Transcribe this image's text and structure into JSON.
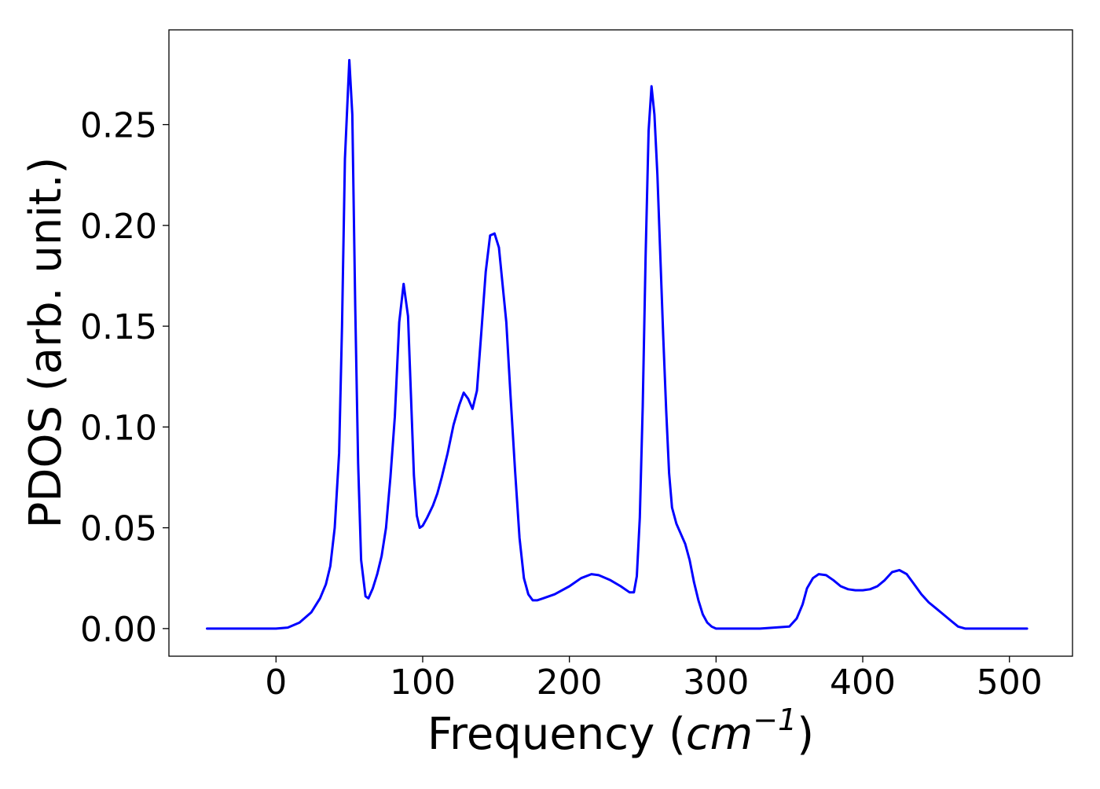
{
  "chart_data": {
    "type": "line",
    "title": "",
    "xlabel_prefix": "Frequency (",
    "xlabel_unit_base": "cm",
    "xlabel_unit_exp": "−1",
    "xlabel_suffix": ")",
    "ylabel": "PDOS (arb. unit.)",
    "xlim": [
      -73,
      543
    ],
    "ylim": [
      -0.0137,
      0.297
    ],
    "xticks": [
      0,
      100,
      200,
      300,
      400,
      500
    ],
    "xtick_labels": [
      "0",
      "100",
      "200",
      "300",
      "400",
      "500"
    ],
    "yticks": [
      0,
      0.05,
      0.1,
      0.15,
      0.2,
      0.25
    ],
    "ytick_labels": [
      "0.00",
      "0.05",
      "0.10",
      "0.15",
      "0.20",
      "0.25"
    ],
    "grid": false,
    "colors": {
      "line": "#0000ff"
    },
    "series": [
      {
        "x": [
          -47,
          0,
          8,
          16,
          24,
          30,
          34,
          37,
          40,
          43,
          45,
          47,
          50,
          52,
          54,
          56,
          58,
          61,
          63,
          66,
          69,
          72,
          75,
          78,
          81,
          84,
          87,
          90,
          92,
          94,
          96,
          98,
          100,
          103,
          107,
          110,
          113,
          117,
          121,
          125,
          128,
          131,
          134,
          137,
          140,
          143,
          146,
          149,
          152,
          154,
          157,
          160,
          163,
          166,
          169,
          172,
          175,
          178,
          182,
          190,
          200,
          208,
          215,
          220,
          228,
          235,
          241,
          244,
          246,
          248,
          250,
          252,
          254,
          256,
          258,
          260,
          262,
          264,
          266,
          268,
          270,
          273,
          276,
          279,
          282,
          285,
          288,
          291,
          294,
          297,
          300,
          303,
          306,
          310,
          330,
          350,
          355,
          359,
          362,
          366,
          370,
          375,
          380,
          385,
          390,
          395,
          400,
          405,
          410,
          415,
          420,
          425,
          430,
          435,
          440,
          445,
          450,
          455,
          460,
          465,
          470,
          475,
          512
        ],
        "y": [
          0,
          0,
          0.0005,
          0.003,
          0.008,
          0.015,
          0.022,
          0.031,
          0.05,
          0.087,
          0.15,
          0.233,
          0.282,
          0.255,
          0.16,
          0.082,
          0.034,
          0.016,
          0.015,
          0.02,
          0.027,
          0.036,
          0.05,
          0.075,
          0.105,
          0.152,
          0.171,
          0.155,
          0.116,
          0.076,
          0.056,
          0.05,
          0.051,
          0.055,
          0.061,
          0.067,
          0.075,
          0.087,
          0.101,
          0.111,
          0.117,
          0.114,
          0.109,
          0.118,
          0.147,
          0.177,
          0.195,
          0.196,
          0.189,
          0.174,
          0.152,
          0.114,
          0.078,
          0.045,
          0.025,
          0.017,
          0.014,
          0.014,
          0.015,
          0.017,
          0.021,
          0.025,
          0.027,
          0.0265,
          0.024,
          0.021,
          0.018,
          0.018,
          0.026,
          0.055,
          0.11,
          0.185,
          0.247,
          0.269,
          0.255,
          0.225,
          0.185,
          0.145,
          0.108,
          0.077,
          0.06,
          0.052,
          0.047,
          0.042,
          0.034,
          0.023,
          0.014,
          0.007,
          0.003,
          0.001,
          0,
          0,
          0,
          0,
          0,
          0.001,
          0.005,
          0.012,
          0.02,
          0.025,
          0.027,
          0.0265,
          0.024,
          0.021,
          0.0195,
          0.019,
          0.019,
          0.0195,
          0.021,
          0.024,
          0.028,
          0.029,
          0.027,
          0.022,
          0.017,
          0.013,
          0.01,
          0.007,
          0.004,
          0.001,
          0,
          0,
          0
        ]
      }
    ]
  }
}
